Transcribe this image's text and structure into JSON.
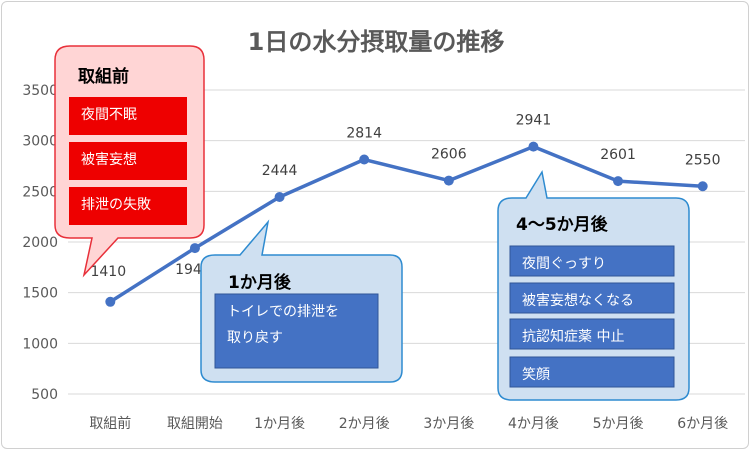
{
  "chart_data": {
    "type": "line",
    "title": "1日の水分摂取量の推移",
    "categories": [
      "取組前",
      "取組開始",
      "1か月後",
      "2か月後",
      "3か月後",
      "4か月後",
      "5か月後",
      "6か月後"
    ],
    "values": [
      1410,
      1940,
      2444,
      2814,
      2606,
      2941,
      2601,
      2550
    ],
    "ylim": [
      500,
      3500
    ],
    "yticks": [
      500,
      1000,
      1500,
      2000,
      2500,
      3000,
      3500
    ],
    "grid": true,
    "series_color": "#4472c4"
  },
  "callouts": {
    "before": {
      "title": "取組前",
      "items": [
        "夜間不眠",
        "被害妄想",
        "排泄の失敗"
      ],
      "fill": "#ffd5d5",
      "stroke": "#e8303a",
      "item_fill": "#ee0000"
    },
    "month1": {
      "title": "1か月後",
      "items": [
        "トイレでの排泄を\n取り戻す"
      ],
      "fill": "#cfe0f1",
      "stroke": "#2e8bd0",
      "item_fill": "#4472c4"
    },
    "month45": {
      "title": "4～5か月後",
      "items": [
        "夜間ぐっすり",
        "被害妄想なくなる",
        "抗認知症薬 中止",
        "笑顔"
      ],
      "fill": "#cfe0f1",
      "stroke": "#2e8bd0",
      "item_fill": "#4472c4"
    }
  }
}
